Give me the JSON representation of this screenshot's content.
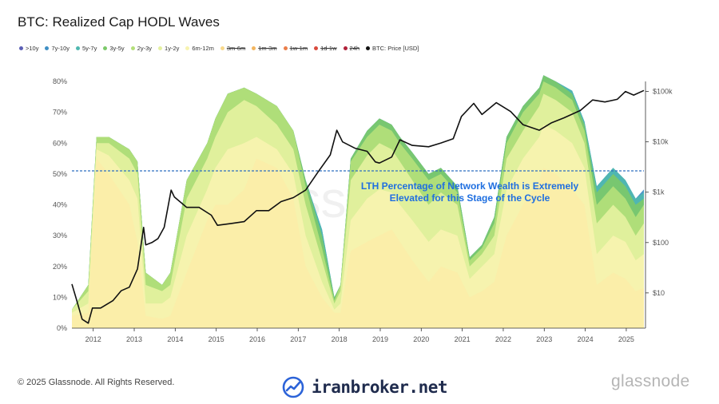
{
  "title": "BTC: Realized Cap HODL Waves",
  "legend": [
    {
      "label": ">10y",
      "color": "#5b5fb5",
      "struck": false
    },
    {
      "label": "7y-10y",
      "color": "#3f8fc4",
      "struck": false
    },
    {
      "label": "5y-7y",
      "color": "#4fb8b0",
      "struck": false
    },
    {
      "label": "3y-5y",
      "color": "#7cc96a",
      "struck": false
    },
    {
      "label": "2y-3y",
      "color": "#b4df7a",
      "struck": false
    },
    {
      "label": "1y-2y",
      "color": "#e4f1a0",
      "struck": false
    },
    {
      "label": "6m-12m",
      "color": "#f7f3b0",
      "struck": false
    },
    {
      "label": "3m-6m",
      "color": "#f8d88a",
      "struck": true
    },
    {
      "label": "1m-3m",
      "color": "#f3b65f",
      "struck": true
    },
    {
      "label": "1w-1m",
      "color": "#ea7e4a",
      "struck": true
    },
    {
      "label": "1d-1w",
      "color": "#d94a3d",
      "struck": true
    },
    {
      "label": "24h",
      "color": "#b0213a",
      "struck": true
    },
    {
      "label": "BTC: Price [USD]",
      "color": "#111111",
      "struck": false
    }
  ],
  "chart_data": {
    "type": "area",
    "title": "BTC: Realized Cap HODL Waves",
    "x_ticks": [
      "2012",
      "2013",
      "2014",
      "2015",
      "2016",
      "2017",
      "2018",
      "2019",
      "2020",
      "2021",
      "2022",
      "2023",
      "2024",
      "2025"
    ],
    "y_left_ticks": [
      "0%",
      "10%",
      "20%",
      "30%",
      "40%",
      "50%",
      "60%",
      "70%",
      "80%"
    ],
    "y_left_range": [
      0,
      80
    ],
    "y_right_ticks": [
      "$10",
      "$100",
      "$1k",
      "$10k",
      "$100k"
    ],
    "y_right_range_log10": [
      0.3,
      5.2
    ],
    "threshold_pct": 51,
    "annotation_line1": "LTH Percentage of Network Wealth is Extremely",
    "annotation_line2": "Elevated for this Stage of the Cycle",
    "watermark": "glassnode",
    "x_years": [
      2011.5,
      2011.9,
      2012.1,
      2012.4,
      2012.9,
      2013.1,
      2013.3,
      2013.7,
      2013.9,
      2014.3,
      2014.8,
      2015.0,
      2015.3,
      2015.7,
      2016.0,
      2016.5,
      2016.9,
      2017.2,
      2017.6,
      2017.9,
      2018.05,
      2018.3,
      2018.7,
      2019.0,
      2019.3,
      2019.5,
      2019.8,
      2020.2,
      2020.5,
      2020.9,
      2021.2,
      2021.5,
      2021.8,
      2022.1,
      2022.5,
      2022.9,
      2023.0,
      2023.3,
      2023.7,
      2024.0,
      2024.3,
      2024.7,
      2025.0,
      2025.25,
      2025.45
    ],
    "bands_top_pct": [
      [
        4,
        5,
        55,
        50,
        40,
        28,
        4,
        3,
        4,
        18,
        35,
        40,
        40,
        45,
        55,
        52,
        42,
        20,
        10,
        5,
        5,
        25,
        28,
        30,
        32,
        28,
        22,
        15,
        20,
        18,
        10,
        12,
        15,
        30,
        40,
        48,
        52,
        50,
        45,
        40,
        14,
        18,
        16,
        12,
        13
      ],
      [
        5,
        8,
        58,
        56,
        48,
        42,
        8,
        8,
        10,
        30,
        45,
        52,
        58,
        60,
        62,
        58,
        50,
        30,
        15,
        6,
        8,
        35,
        42,
        45,
        44,
        40,
        35,
        28,
        32,
        30,
        16,
        20,
        24,
        45,
        55,
        62,
        66,
        64,
        60,
        52,
        24,
        30,
        28,
        22,
        24
      ],
      [
        6,
        12,
        60,
        60,
        55,
        50,
        14,
        12,
        14,
        42,
        55,
        62,
        70,
        74,
        72,
        66,
        58,
        40,
        22,
        8,
        12,
        48,
        56,
        60,
        58,
        54,
        48,
        40,
        44,
        40,
        20,
        24,
        30,
        55,
        64,
        72,
        76,
        74,
        70,
        60,
        34,
        40,
        36,
        30,
        34
      ],
      [
        6,
        14,
        62,
        62,
        58,
        54,
        18,
        14,
        18,
        48,
        60,
        68,
        76,
        78,
        76,
        72,
        64,
        46,
        26,
        9,
        14,
        54,
        62,
        66,
        64,
        60,
        55,
        48,
        50,
        44,
        22,
        26,
        34,
        60,
        70,
        76,
        80,
        78,
        74,
        64,
        40,
        46,
        42,
        36,
        40
      ],
      [
        6,
        14,
        62,
        62,
        58,
        54,
        18,
        14,
        18,
        48,
        60,
        68,
        76,
        78,
        76,
        72,
        64,
        48,
        30,
        10,
        14,
        55,
        64,
        68,
        66,
        62,
        57,
        50,
        52,
        46,
        23,
        27,
        36,
        62,
        72,
        78,
        82,
        80,
        76,
        66,
        44,
        50,
        46,
        40,
        42
      ],
      [
        6,
        14,
        62,
        62,
        58,
        54,
        18,
        14,
        18,
        48,
        60,
        68,
        76,
        78,
        76,
        72,
        64,
        48,
        32,
        10,
        14,
        55,
        64,
        68,
        66,
        62,
        57,
        50,
        52,
        46,
        23,
        27,
        36,
        62,
        72,
        78,
        82,
        80,
        77,
        67,
        46,
        52,
        48,
        42,
        44
      ],
      [
        6,
        14,
        62,
        62,
        58,
        54,
        18,
        14,
        18,
        48,
        60,
        68,
        76,
        78,
        76,
        72,
        64,
        48,
        32,
        10,
        14,
        55,
        64,
        68,
        66,
        62,
        57,
        50,
        52,
        46,
        23,
        27,
        36,
        62,
        72,
        78,
        82,
        80,
        77,
        67,
        46,
        52,
        48,
        42,
        45
      ]
    ],
    "band_colors": [
      "#fbeea8",
      "#f7f3b0",
      "#e4f1a0",
      "#b4df7a",
      "#7cc96a",
      "#4fb8b0",
      "#3f8fc4"
    ],
    "price_series": {
      "name": "BTC: Price [USD]",
      "x": [
        2011.5,
        2011.6,
        2011.75,
        2011.9,
        2012.0,
        2012.2,
        2012.5,
        2012.7,
        2012.9,
        2013.1,
        2013.25,
        2013.3,
        2013.45,
        2013.6,
        2013.75,
        2013.92,
        2014.0,
        2014.3,
        2014.6,
        2014.9,
        2015.05,
        2015.4,
        2015.7,
        2016.0,
        2016.3,
        2016.6,
        2016.9,
        2017.2,
        2017.5,
        2017.8,
        2017.96,
        2018.1,
        2018.4,
        2018.7,
        2018.9,
        2019.0,
        2019.3,
        2019.5,
        2019.8,
        2020.2,
        2020.5,
        2020.8,
        2021.0,
        2021.3,
        2021.5,
        2021.85,
        2022.2,
        2022.5,
        2022.9,
        2023.2,
        2023.5,
        2023.9,
        2024.2,
        2024.5,
        2024.8,
        2025.0,
        2025.2,
        2025.45
      ],
      "y": [
        15,
        8,
        3,
        2.5,
        5,
        5,
        7,
        11,
        13,
        30,
        200,
        90,
        100,
        120,
        200,
        1100,
        800,
        500,
        500,
        350,
        220,
        240,
        260,
        430,
        430,
        650,
        780,
        1100,
        2500,
        5500,
        17000,
        10000,
        7500,
        6500,
        4000,
        3800,
        5000,
        11000,
        8500,
        8000,
        9500,
        11500,
        32000,
        58000,
        35000,
        60000,
        40000,
        22000,
        17000,
        24000,
        30000,
        42000,
        68000,
        62000,
        70000,
        100000,
        85000,
        105000
      ]
    }
  },
  "footer": {
    "copyright": "© 2025 Glassnode. All Rights Reserved.",
    "brand": "iranbroker.net",
    "logo": "glassnode"
  }
}
